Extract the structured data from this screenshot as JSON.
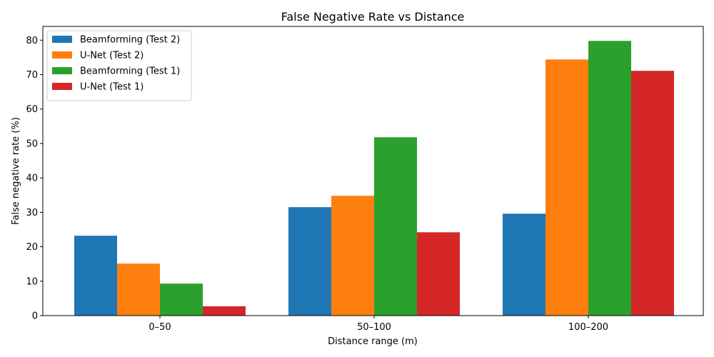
{
  "chart_data": {
    "type": "bar",
    "title": "False Negative Rate vs Distance",
    "xlabel": "Distance range (m)",
    "ylabel": "False negative rate (%)",
    "categories": [
      "0–50",
      "50–100",
      "100–200"
    ],
    "ylim": [
      0,
      84
    ],
    "yticks": [
      0,
      10,
      20,
      30,
      40,
      50,
      60,
      70,
      80
    ],
    "legend_position": "upper-left",
    "series": [
      {
        "name": "Beamforming (Test 2)",
        "color": "#1f77b4",
        "values": [
          23.2,
          31.5,
          29.6
        ]
      },
      {
        "name": "U-Net (Test 2)",
        "color": "#ff7f0e",
        "values": [
          15.1,
          34.8,
          74.4
        ]
      },
      {
        "name": "Beamforming (Test 1)",
        "color": "#2ca02c",
        "values": [
          9.3,
          51.8,
          79.8
        ]
      },
      {
        "name": "U-Net (Test 1)",
        "color": "#d62728",
        "values": [
          2.7,
          24.2,
          71.1
        ]
      }
    ]
  }
}
